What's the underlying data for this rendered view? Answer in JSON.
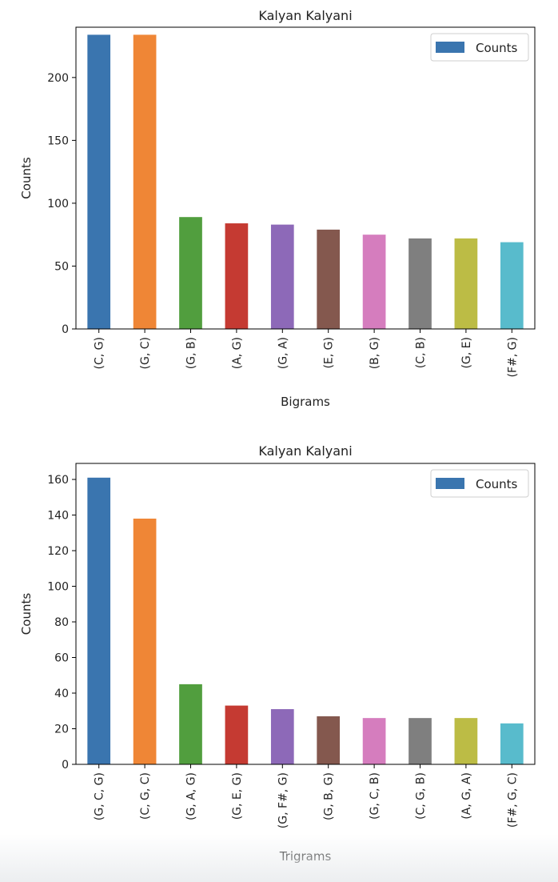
{
  "chart_data": [
    {
      "type": "bar",
      "title": "Kalyan Kalyani",
      "xlabel": "Bigrams",
      "ylabel": "Counts",
      "ylim": [
        0,
        240
      ],
      "yticks": [
        0,
        50,
        100,
        150,
        200
      ],
      "categories": [
        "(C, G)",
        "(G, C)",
        "(G, B)",
        "(A, G)",
        "(G, A)",
        "(E, G)",
        "(B, G)",
        "(C, B)",
        "(G, E)",
        "(F#, G)"
      ],
      "series": [
        {
          "name": "Counts",
          "values": [
            234,
            234,
            89,
            84,
            83,
            79,
            75,
            72,
            72,
            69
          ]
        }
      ],
      "legend": "top-right",
      "grid": false
    },
    {
      "type": "bar",
      "title": "Kalyan Kalyani",
      "xlabel": "Trigrams",
      "ylabel": "Counts",
      "ylim": [
        0,
        169
      ],
      "yticks": [
        0,
        20,
        40,
        60,
        80,
        100,
        120,
        140,
        160
      ],
      "categories": [
        "(G, C, G)",
        "(C, G, C)",
        "(G, A, G)",
        "(G, E, G)",
        "(G, F#, G)",
        "(G, B, G)",
        "(G, C, B)",
        "(C, G, B)",
        "(A, G, A)",
        "(F#, G, C)"
      ],
      "series": [
        {
          "name": "Counts",
          "values": [
            161,
            138,
            45,
            33,
            31,
            27,
            26,
            26,
            26,
            23
          ]
        }
      ],
      "legend": "top-right",
      "grid": false
    }
  ],
  "colors": [
    "#3a75af",
    "#ef8636",
    "#519e3e",
    "#c53a32",
    "#8d69b8",
    "#84584e",
    "#d57dbe",
    "#7f7f7f",
    "#bcbc45",
    "#58bbcc"
  ],
  "legend_color": "#3a75af"
}
